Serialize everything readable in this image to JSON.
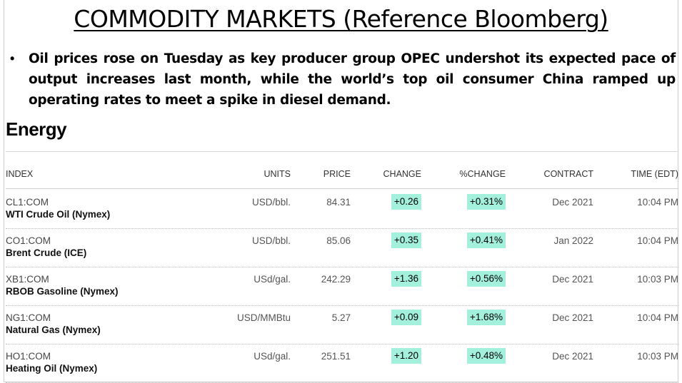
{
  "title": "COMMODITY MARKETS (Reference Bloomberg)",
  "bullet": {
    "symbol": "•",
    "text": "Oil prices rose on Tuesday as key producer group OPEC undershot its expected pace of output increases last month, while the world’s top oil consumer China ramped up operating rates to meet a spike in diesel demand."
  },
  "section_title": "Energy",
  "colors": {
    "positive_bg": "#a3f0dc"
  },
  "table": {
    "headers": {
      "index": "INDEX",
      "units": "UNITS",
      "price": "PRICE",
      "change": "CHANGE",
      "pct_change": "%CHANGE",
      "contract": "CONTRACT",
      "time": "TIME (EDT)"
    },
    "rows": [
      {
        "code": "CL1:COM",
        "name": "WTI Crude Oil (Nymex)",
        "units": "USD/bbl.",
        "price": "84.31",
        "change": "+0.26",
        "pct_change": "+0.31%",
        "contract": "Dec 2021",
        "time": "10:04 PM"
      },
      {
        "code": "CO1:COM",
        "name": "Brent Crude (ICE)",
        "units": "USD/bbl.",
        "price": "85.06",
        "change": "+0.35",
        "pct_change": "+0.41%",
        "contract": "Jan 2022",
        "time": "10:04 PM"
      },
      {
        "code": "XB1:COM",
        "name": "RBOB Gasoline (Nymex)",
        "units": "USd/gal.",
        "price": "242.29",
        "change": "+1.36",
        "pct_change": "+0.56%",
        "contract": "Dec 2021",
        "time": "10:03 PM"
      },
      {
        "code": "NG1:COM",
        "name": "Natural Gas (Nymex)",
        "units": "USD/MMBtu",
        "price": "5.27",
        "change": "+0.09",
        "pct_change": "+1.68%",
        "contract": "Dec 2021",
        "time": "10:04 PM"
      },
      {
        "code": "HO1:COM",
        "name": "Heating Oil (Nymex)",
        "units": "USd/gal.",
        "price": "251.51",
        "change": "+1.20",
        "pct_change": "+0.48%",
        "contract": "Dec 2021",
        "time": "10:03 PM"
      }
    ]
  }
}
